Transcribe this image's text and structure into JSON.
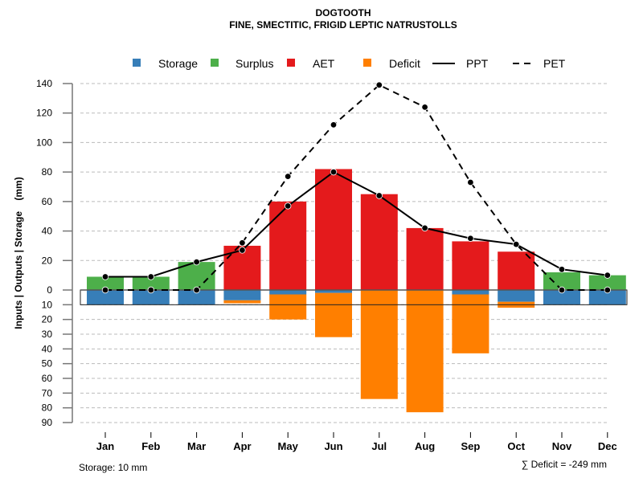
{
  "chart_data": {
    "type": "bar",
    "title": "DOGTOOTH",
    "subtitle": "FINE, SMECTITIC, FRIGID LEPTIC NATRUSTOLLS",
    "ylabel": "Inputs | Outputs | Storage    (mm)",
    "xlabel": "",
    "categories": [
      "Jan",
      "Feb",
      "Mar",
      "Apr",
      "May",
      "Jun",
      "Jul",
      "Aug",
      "Sep",
      "Oct",
      "Nov",
      "Dec"
    ],
    "upper_ylim": [
      0,
      140
    ],
    "upper_ticks": [
      "0",
      "20",
      "40",
      "60",
      "80",
      "100",
      "120",
      "140"
    ],
    "lower_ylim": [
      0,
      90
    ],
    "lower_ticks": [
      "0",
      "10",
      "20",
      "30",
      "40",
      "50",
      "60",
      "70",
      "80",
      "90"
    ],
    "grid": true,
    "legend_position": "top",
    "legend": [
      {
        "name": "Storage",
        "type": "box",
        "color": "#377EB8"
      },
      {
        "name": "Surplus",
        "type": "box",
        "color": "#4DAF4A"
      },
      {
        "name": "AET",
        "type": "box",
        "color": "#E41A1C"
      },
      {
        "name": "Deficit",
        "type": "box",
        "color": "#FF7F00"
      },
      {
        "name": "PPT",
        "type": "solid-line",
        "color": "#000000"
      },
      {
        "name": "PET",
        "type": "dashed-line",
        "color": "#000000"
      }
    ],
    "series": [
      {
        "name": "Surplus",
        "values": [
          9,
          9,
          19,
          0,
          0,
          0,
          0,
          0,
          0,
          0,
          12,
          10
        ],
        "color": "#4DAF4A"
      },
      {
        "name": "AET",
        "values": [
          0,
          0,
          0,
          30,
          60,
          82,
          65,
          42,
          33,
          26,
          0,
          0
        ],
        "color": "#E41A1C"
      },
      {
        "name": "Storage",
        "values": [
          10,
          10,
          10,
          7,
          3,
          2,
          0,
          0,
          3,
          8,
          10,
          10
        ],
        "color": "#377EB8"
      },
      {
        "name": "Deficit",
        "values": [
          0,
          0,
          0,
          2,
          17,
          30,
          74,
          83,
          40,
          4,
          0,
          0
        ],
        "color": "#FF7F00"
      },
      {
        "name": "PPT",
        "values": [
          9,
          9,
          19,
          27,
          57,
          80,
          64,
          42,
          35,
          31,
          14,
          10
        ],
        "color": "#000000"
      },
      {
        "name": "PET",
        "values": [
          0,
          0,
          0,
          32,
          77,
          112,
          139,
          124,
          73,
          31,
          0,
          0
        ],
        "color": "#000000"
      }
    ],
    "storage_capacity": 10,
    "annotations": {
      "storage": "Storage: 10 mm",
      "deficit_sum": "∑ Deficit = -249 mm"
    }
  }
}
